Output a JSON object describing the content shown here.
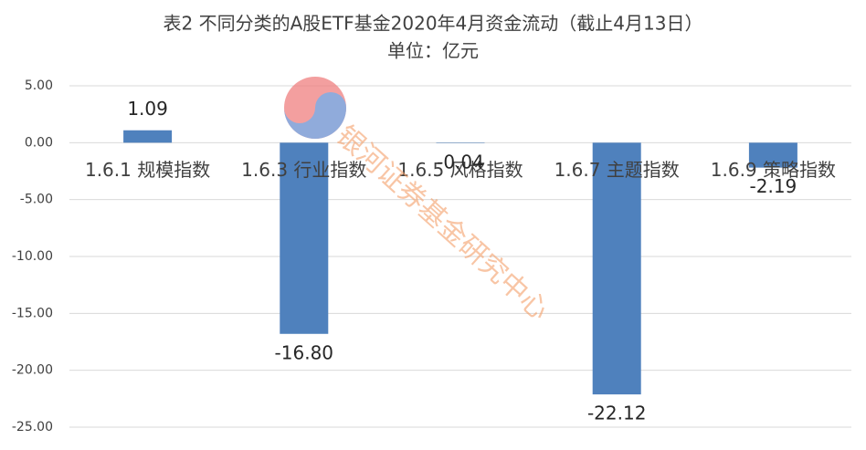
{
  "chart_data": {
    "type": "bar",
    "title": "表2  不同分类的A股ETF基金2020年4月资金流动（截止4月13日）",
    "subtitle": "单位：亿元",
    "categories": [
      "1.6.1 规模指数",
      "1.6.3 行业指数",
      "1.6.5 风格指数",
      "1.6.7 主题指数",
      "1.6.9 策略指数"
    ],
    "values": [
      1.09,
      -16.8,
      -0.04,
      -22.12,
      -2.19
    ],
    "value_labels": [
      "1.09",
      "-16.80",
      "-0.04",
      "-22.12",
      "-2.19"
    ],
    "color": "#4f81bd",
    "ylim": [
      -25,
      5
    ],
    "yticks": [
      {
        "value": 5,
        "label": "5.00"
      },
      {
        "value": 0,
        "label": "0.00"
      },
      {
        "value": -5,
        "label": "-5.00"
      },
      {
        "value": -10,
        "label": "-10.00"
      },
      {
        "value": -15,
        "label": "-15.00"
      },
      {
        "value": -20,
        "label": "-20.00"
      },
      {
        "value": -25,
        "label": "-25.00"
      }
    ],
    "grid": true,
    "watermark": "银河证券基金研究中心"
  }
}
